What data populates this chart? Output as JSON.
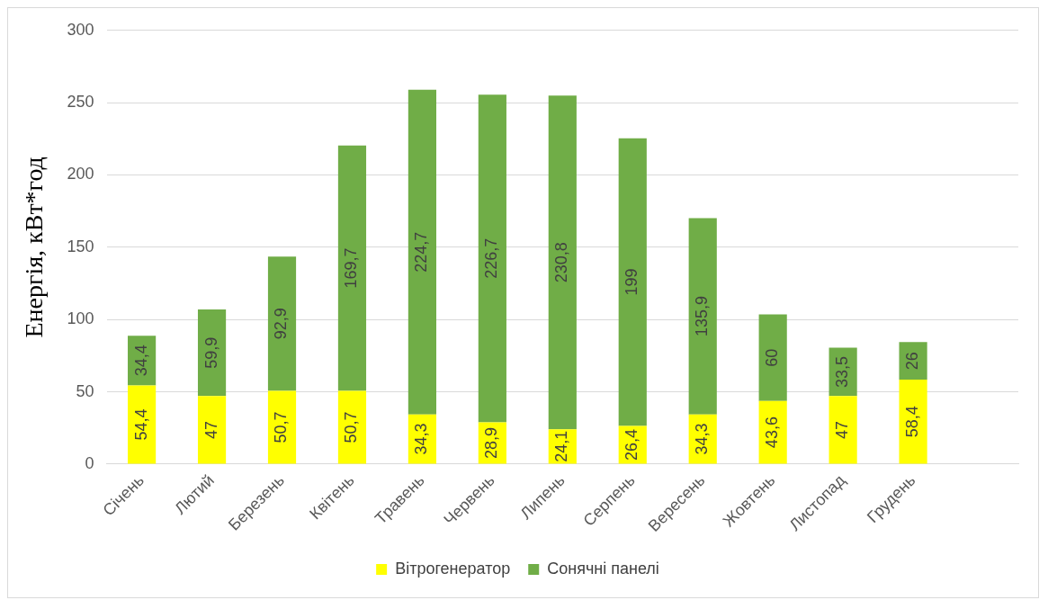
{
  "chart_data": {
    "type": "bar",
    "stacked": true,
    "ylabel": "Енергія, кВт*год",
    "categories": [
      "Січень",
      "Лютий",
      "Березень",
      "Квітень",
      "Травень",
      "Червень",
      "Липень",
      "Серпень",
      "Вересень",
      "Жовтень",
      "Листопад",
      "Грудень",
      null
    ],
    "series": [
      {
        "name": "Вітрогенератор",
        "color": "#ffff00",
        "values": [
          54.4,
          47,
          50.7,
          50.7,
          34.3,
          28.9,
          24.1,
          26.4,
          34.3,
          43.6,
          47,
          58.4,
          null
        ],
        "value_labels": [
          "54,4",
          "47",
          "50,7",
          "50,7",
          "34,3",
          "28,9",
          "24,1",
          "26,4",
          "34,3",
          "43,6",
          "47",
          "58,4",
          null
        ]
      },
      {
        "name": "Сонячні панелі",
        "color": "#70ad47",
        "values": [
          34.4,
          59.9,
          92.9,
          169.7,
          224.7,
          226.7,
          230.8,
          199,
          135.9,
          60,
          33.5,
          26,
          null
        ],
        "value_labels": [
          "34,4",
          "59,9",
          "92,9",
          "169,7",
          "224,7",
          "226,7",
          "230,8",
          "199",
          "135,9",
          "60",
          "33,5",
          "26",
          null
        ]
      }
    ],
    "ylim": [
      0,
      300
    ],
    "yticks": [
      0,
      50,
      100,
      150,
      200,
      250,
      300
    ],
    "grid": "y",
    "legend": "bottom"
  }
}
